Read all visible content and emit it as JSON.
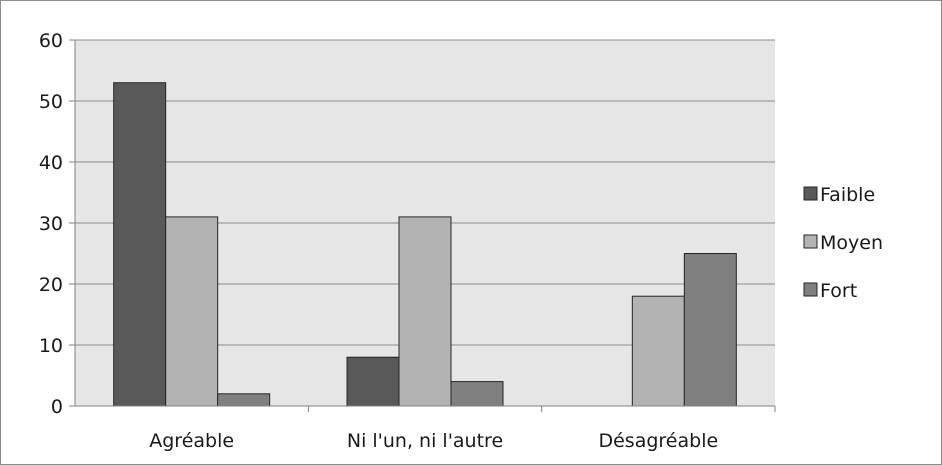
{
  "chart_data": {
    "type": "bar",
    "categories": [
      "Agréable",
      "Ni l'un, ni l'autre",
      "Désagréable"
    ],
    "series": [
      {
        "name": "Faible",
        "color": "#595959",
        "values": [
          53,
          8,
          0
        ]
      },
      {
        "name": "Moyen",
        "color": "#b3b3b3",
        "values": [
          31,
          31,
          18
        ]
      },
      {
        "name": "Fort",
        "color": "#808080",
        "values": [
          2,
          4,
          25
        ]
      }
    ],
    "yticks": [
      "0",
      "10",
      "20",
      "30",
      "40",
      "50",
      "60"
    ],
    "ylim": [
      0,
      60
    ],
    "grid": true,
    "legend": "right",
    "plot_background": "#e6e6e6"
  }
}
